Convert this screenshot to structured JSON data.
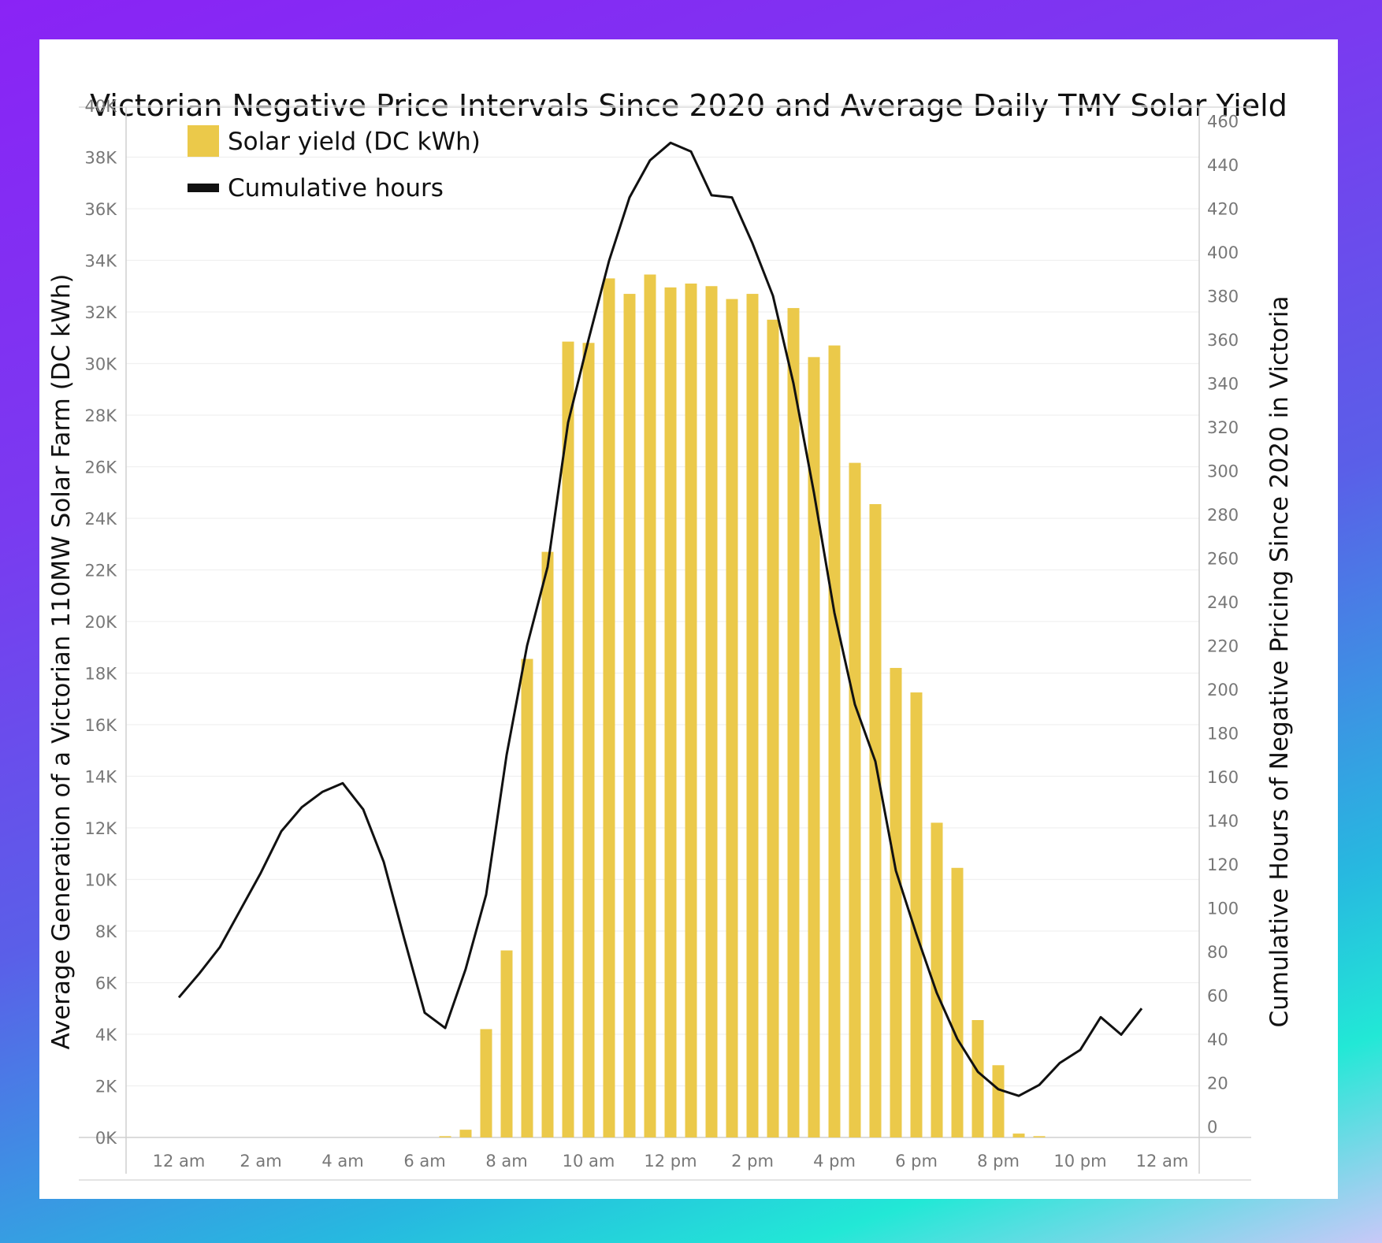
{
  "chart_data": {
    "type": "bar+line",
    "title": "Victorian Negative Price Intervals Since 2020 and Average Daily TMY Solar Yield",
    "ylabel_left": "Average Generation of a Victorian 110MW Solar Farm (DC kWh)",
    "ylabel_right": "Cumulative Hours of Negative Pricing Since 2020 in Victoria",
    "ylim_left": [
      0,
      40000
    ],
    "ylim_right": [
      0,
      470
    ],
    "left_ticks": [
      "0K",
      "2K",
      "4K",
      "6K",
      "8K",
      "10K",
      "12K",
      "14K",
      "16K",
      "18K",
      "20K",
      "22K",
      "24K",
      "26K",
      "28K",
      "30K",
      "32K",
      "34K",
      "36K",
      "38K",
      "40K"
    ],
    "right_ticks": [
      "0",
      "20",
      "40",
      "60",
      "80",
      "100",
      "120",
      "140",
      "160",
      "180",
      "200",
      "220",
      "240",
      "260",
      "280",
      "300",
      "320",
      "340",
      "360",
      "380",
      "400",
      "420",
      "440",
      "460"
    ],
    "x_tick_labels": [
      "12 am",
      "2 am",
      "4 am",
      "6 am",
      "8 am",
      "10 am",
      "12 pm",
      "2 pm",
      "4 pm",
      "6 pm",
      "8 pm",
      "10 pm",
      "12 am"
    ],
    "x_hours": [
      0,
      0.5,
      1,
      1.5,
      2,
      2.5,
      3,
      3.5,
      4,
      4.5,
      5,
      5.5,
      6,
      6.5,
      7,
      7.5,
      8,
      8.5,
      9,
      9.5,
      10,
      10.5,
      11,
      11.5,
      12,
      12.5,
      13,
      13.5,
      14,
      14.5,
      15,
      15.5,
      16,
      16.5,
      17,
      17.5,
      18,
      18.5,
      19,
      19.5,
      20,
      20.5,
      21,
      21.5,
      22,
      22.5,
      23,
      23.5
    ],
    "series": [
      {
        "name": "Solar yield (DC kWh)",
        "type": "bar",
        "color": "#ebc94a",
        "values": [
          0,
          0,
          0,
          0,
          0,
          0,
          0,
          0,
          0,
          0,
          0,
          0,
          0,
          50,
          300,
          4200,
          7250,
          18550,
          22700,
          30850,
          30800,
          33300,
          32700,
          33450,
          32950,
          33100,
          33000,
          32500,
          32700,
          31700,
          32150,
          30250,
          30700,
          26150,
          24550,
          18200,
          17250,
          12200,
          10450,
          4550,
          2800,
          150,
          50,
          0,
          0,
          0,
          0,
          0
        ]
      },
      {
        "name": "Cumulative hours",
        "type": "line",
        "color": "#111111",
        "values": [
          59,
          70,
          82,
          99,
          116,
          135,
          146,
          153,
          157,
          145,
          121,
          86,
          52,
          45,
          72,
          106,
          170,
          220,
          256,
          322,
          360,
          396,
          425,
          442,
          450,
          446,
          426,
          425,
          404,
          380,
          340,
          290,
          235,
          193,
          167,
          117,
          88,
          61,
          40,
          25,
          17,
          14,
          19,
          29,
          35,
          50,
          42,
          54
        ]
      }
    ]
  },
  "legend": {
    "solar_label": "Solar yield (DC kWh)",
    "line_label": "Cumulative hours"
  }
}
